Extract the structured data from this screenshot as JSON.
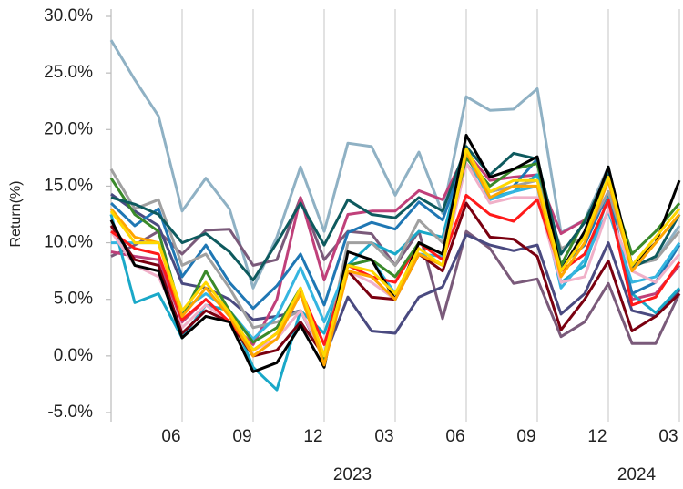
{
  "chart_data": {
    "type": "line",
    "y_label": "Return(%)",
    "categories": [
      null,
      null,
      null,
      "06",
      null,
      null,
      "09",
      null,
      null,
      "12",
      null,
      null,
      "03",
      null,
      null,
      "06",
      null,
      null,
      "09",
      null,
      null,
      "12",
      null,
      null,
      "03"
    ],
    "year_categories": [
      null,
      null,
      null,
      null,
      null,
      null,
      null,
      null,
      null,
      null,
      "2023",
      null,
      null,
      null,
      null,
      null,
      null,
      null,
      null,
      null,
      null,
      null,
      "2024",
      null,
      null
    ],
    "ylim": [
      -5,
      30
    ],
    "yticks": [
      {
        "value": -5,
        "label": "-5.0%"
      },
      {
        "value": 0,
        "label": "0.0%"
      },
      {
        "value": 5,
        "label": "5.0%"
      },
      {
        "value": 10,
        "label": "10.0%"
      },
      {
        "value": 15,
        "label": "15.0%"
      },
      {
        "value": 20,
        "label": "20.0%"
      },
      {
        "value": 25,
        "label": "25.0%"
      },
      {
        "value": 30,
        "label": "30.0%"
      }
    ],
    "grid": true,
    "series": [
      {
        "color": "#8fb1c4",
        "values": [
          27.9,
          24.4,
          21.2,
          12.8,
          15.7,
          13.0,
          6.0,
          10.5,
          16.7,
          11.0,
          18.8,
          18.5,
          14.2,
          18.0,
          12.6,
          22.9,
          21.7,
          21.8,
          23.6,
          10.9,
          12.0,
          16.7,
          8.0,
          8.5,
          11.5
        ]
      },
      {
        "color": "#7a5a7a",
        "values": [
          8.8,
          9.8,
          11.0,
          9.0,
          11.1,
          11.2,
          8.0,
          8.5,
          14.0,
          8.5,
          11.0,
          10.8,
          8.0,
          11.0,
          3.3,
          11.0,
          9.5,
          6.4,
          6.8,
          1.7,
          3.0,
          6.4,
          1.1,
          1.1,
          5.5
        ]
      },
      {
        "color": "#4a4a80",
        "values": [
          14.3,
          12.8,
          11.5,
          6.4,
          6.0,
          5.0,
          3.2,
          3.5,
          4.0,
          -0.2,
          5.2,
          2.2,
          2.0,
          5.2,
          6.1,
          10.7,
          9.8,
          9.3,
          9.8,
          3.7,
          5.5,
          10.0,
          4.0,
          3.5,
          5.8
        ]
      },
      {
        "color": "#c0407a",
        "values": [
          9.2,
          8.8,
          8.5,
          3.0,
          5.0,
          3.0,
          1.0,
          5.0,
          14.0,
          6.7,
          12.5,
          12.8,
          12.8,
          14.6,
          13.8,
          18.0,
          15.5,
          15.8,
          16.0,
          10.8,
          12.0,
          13.5,
          5.0,
          5.5,
          8.0
        ]
      },
      {
        "color": "#1aa8c8",
        "values": [
          12.5,
          4.7,
          5.5,
          1.6,
          4.5,
          4.0,
          -1.0,
          -3.0,
          4.0,
          2.0,
          8.0,
          10.0,
          9.0,
          11.0,
          10.5,
          18.5,
          14.0,
          14.5,
          16.0,
          6.5,
          8.0,
          14.0,
          5.5,
          3.8,
          6.0
        ]
      },
      {
        "color": "#1f77b4",
        "values": [
          13.5,
          11.5,
          13.0,
          7.0,
          9.8,
          6.5,
          4.2,
          6.2,
          9.0,
          4.5,
          10.9,
          11.8,
          11.2,
          13.6,
          12.0,
          18.0,
          14.5,
          15.0,
          17.4,
          8.0,
          9.8,
          14.5,
          5.5,
          6.5,
          9.8
        ]
      },
      {
        "color": "#a0a0a0",
        "values": [
          16.5,
          13.0,
          13.8,
          8.0,
          9.0,
          6.0,
          2.5,
          3.0,
          4.0,
          0.0,
          10.0,
          10.0,
          8.0,
          12.0,
          10.0,
          17.0,
          14.5,
          15.0,
          15.5,
          9.5,
          10.5,
          14.5,
          8.0,
          8.5,
          11.0
        ]
      },
      {
        "color": "#35b5e0",
        "values": [
          10.0,
          10.0,
          10.0,
          4.0,
          5.5,
          4.0,
          1.5,
          3.5,
          7.8,
          3.0,
          8.0,
          8.5,
          5.5,
          9.0,
          8.8,
          17.8,
          13.8,
          14.5,
          15.0,
          6.0,
          8.5,
          12.8,
          6.5,
          7.0,
          10.0
        ]
      },
      {
        "color": "#f0b0c8",
        "values": [
          11.0,
          8.0,
          7.0,
          2.5,
          4.5,
          3.0,
          0.5,
          1.5,
          4.0,
          0.0,
          7.5,
          6.5,
          5.0,
          9.5,
          8.0,
          17.0,
          13.5,
          14.0,
          14.0,
          6.5,
          7.0,
          13.0,
          7.5,
          6.5,
          9.0
        ]
      },
      {
        "color": "#7a0010",
        "values": [
          11.5,
          8.5,
          8.0,
          2.0,
          4.0,
          3.0,
          0.0,
          0.5,
          3.0,
          0.0,
          7.5,
          5.2,
          5.0,
          9.0,
          7.5,
          13.5,
          10.5,
          10.3,
          8.8,
          2.3,
          5.0,
          8.4,
          2.2,
          3.5,
          5.5
        ]
      },
      {
        "color": "#ff1a1a",
        "values": [
          11.0,
          9.5,
          9.0,
          3.2,
          5.0,
          3.0,
          0.5,
          2.0,
          5.8,
          1.0,
          8.0,
          7.0,
          6.5,
          10.0,
          8.5,
          14.2,
          12.5,
          11.9,
          13.8,
          7.5,
          9.0,
          13.8,
          4.5,
          5.2,
          8.3
        ]
      },
      {
        "color": "#3a8a2a",
        "values": [
          15.7,
          12.5,
          11.0,
          3.5,
          7.5,
          4.0,
          1.2,
          2.5,
          6.0,
          -0.5,
          8.0,
          8.5,
          7.0,
          10.0,
          9.0,
          17.5,
          15.0,
          16.5,
          17.0,
          8.0,
          12.0,
          15.5,
          9.0,
          11.0,
          13.5
        ]
      },
      {
        "color": "#0e5a5e",
        "values": [
          14.0,
          13.4,
          12.5,
          10.0,
          10.8,
          9.2,
          6.7,
          10.0,
          13.5,
          9.8,
          13.8,
          12.5,
          12.2,
          14.0,
          12.8,
          18.5,
          16.0,
          17.9,
          17.4,
          9.0,
          11.8,
          16.3,
          7.8,
          8.8,
          12.5
        ]
      },
      {
        "color": "#000000",
        "values": [
          12.0,
          8.0,
          7.5,
          1.6,
          3.5,
          3.0,
          -1.4,
          -0.6,
          2.7,
          -1.0,
          9.2,
          8.5,
          5.0,
          10.0,
          9.0,
          19.5,
          15.8,
          16.5,
          17.6,
          7.5,
          11.0,
          16.7,
          8.0,
          10.0,
          15.5
        ]
      },
      {
        "color": "#ffa500",
        "values": [
          13.0,
          10.5,
          10.0,
          3.5,
          6.0,
          3.5,
          0.0,
          1.5,
          5.5,
          -0.8,
          7.5,
          7.0,
          5.0,
          9.0,
          8.0,
          18.0,
          14.0,
          15.0,
          15.0,
          7.0,
          10.0,
          15.5,
          7.5,
          10.0,
          12.5
        ]
      },
      {
        "color": "#ffd700",
        "values": [
          12.8,
          10.0,
          10.0,
          4.0,
          6.5,
          3.8,
          0.5,
          2.0,
          6.0,
          0.0,
          8.0,
          7.5,
          5.5,
          9.5,
          8.0,
          18.3,
          14.5,
          15.5,
          15.5,
          7.5,
          10.5,
          15.8,
          8.0,
          10.5,
          13.0
        ]
      }
    ]
  }
}
